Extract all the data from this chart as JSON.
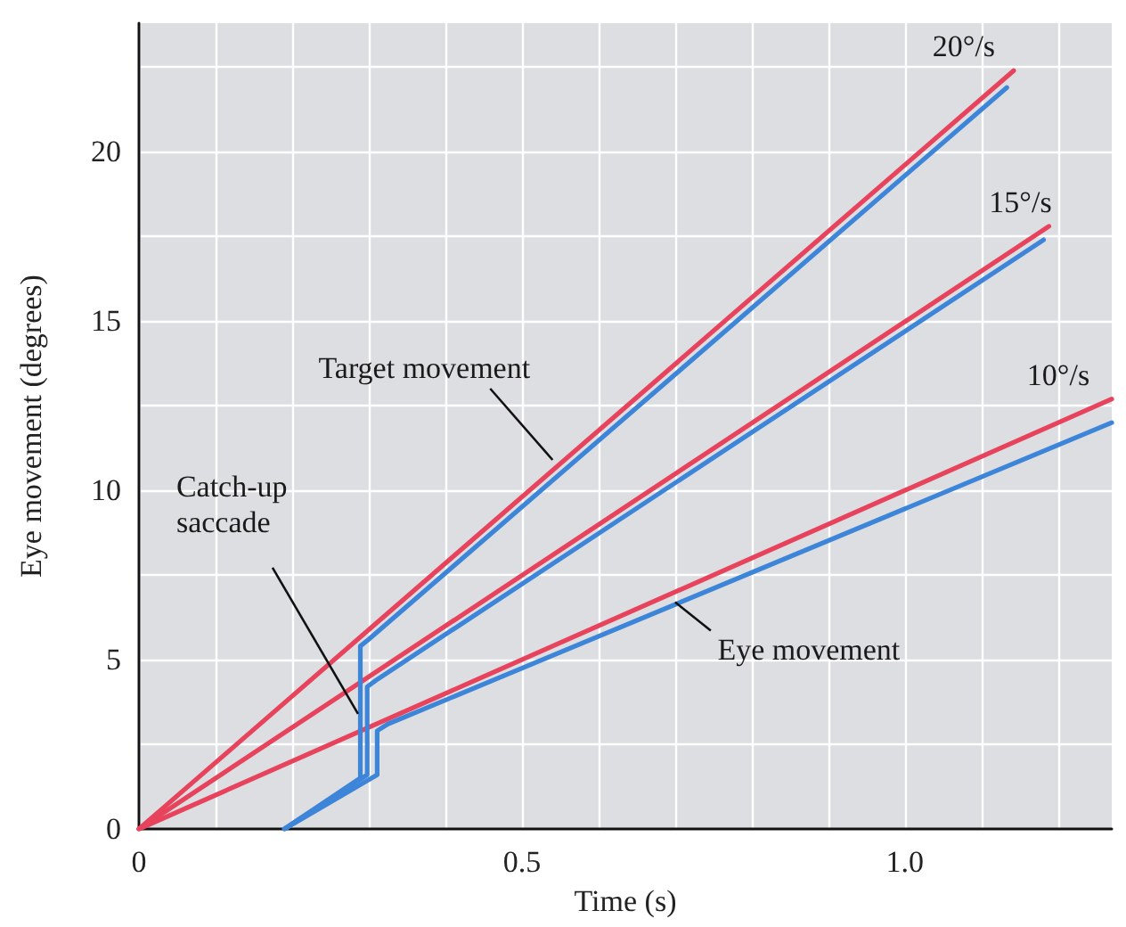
{
  "chart_data": {
    "type": "line",
    "xlabel": "Time (s)",
    "ylabel": "Eye movement (degrees)",
    "xlim": [
      0,
      1.27
    ],
    "ylim": [
      0,
      23.8
    ],
    "xticks": [
      0,
      {
        "value": 0.1,
        "label": null
      },
      {
        "value": 0.2,
        "label": null
      },
      {
        "value": 0.3,
        "label": null
      },
      {
        "value": 0.4,
        "label": null
      },
      {
        "value": 0.5,
        "label": "0.5"
      },
      {
        "value": 0.6,
        "label": null
      },
      {
        "value": 0.7,
        "label": null
      },
      {
        "value": 0.8,
        "label": null
      },
      {
        "value": 0.9,
        "label": null
      },
      {
        "value": 1,
        "label": "1.0"
      },
      {
        "value": 1.1,
        "label": null
      },
      {
        "value": 1.2,
        "label": null
      }
    ],
    "yticks": [
      0,
      {
        "value": 2.5,
        "label": null
      },
      5,
      {
        "value": 7.5,
        "label": null
      },
      10,
      {
        "value": 12.5,
        "label": null
      },
      15,
      {
        "value": 17.5,
        "label": null
      },
      20,
      {
        "value": 22.5,
        "label": null
      }
    ],
    "grid": true,
    "series": [
      {
        "color": "#e8435c",
        "x": [
          0,
          1.142
        ],
        "values": [
          0,
          22.4
        ]
      },
      {
        "color": "#e8435c",
        "x": [
          0,
          1.188
        ],
        "values": [
          0,
          17.8
        ]
      },
      {
        "color": "#e8435c",
        "x": [
          0,
          1.27
        ],
        "values": [
          0,
          12.7
        ]
      },
      {
        "color": "#3d85d8",
        "x": [
          0.19,
          0.289,
          0.289,
          0.3,
          1.133
        ],
        "values": [
          0,
          1.5,
          5.4,
          5.6,
          21.9
        ]
      },
      {
        "color": "#3d85d8",
        "x": [
          0.19,
          0.298,
          0.298,
          0.31,
          1.181
        ],
        "values": [
          0,
          1.6,
          4.2,
          4.4,
          17.4
        ]
      },
      {
        "color": "#3d85d8",
        "x": [
          0.19,
          0.311,
          0.311,
          0.325,
          1.27
        ],
        "values": [
          0,
          1.6,
          2.9,
          3.1,
          12.0
        ]
      }
    ],
    "annotations": [
      {
        "text": "20°/s",
        "x": 1.142,
        "y": 22.4
      },
      {
        "text": "15°/s",
        "x": 1.188,
        "y": 17.8
      },
      {
        "text": "10°/s",
        "x": 1.27,
        "y": 12.7
      },
      {
        "text": "Target movement",
        "x": 0.54,
        "y": 10.9
      },
      {
        "text": "Catch-up\nsaccade",
        "x": 0.286,
        "y": 3.4
      },
      {
        "text": "Eye movement",
        "x": 0.7,
        "y": 6.7
      }
    ]
  }
}
